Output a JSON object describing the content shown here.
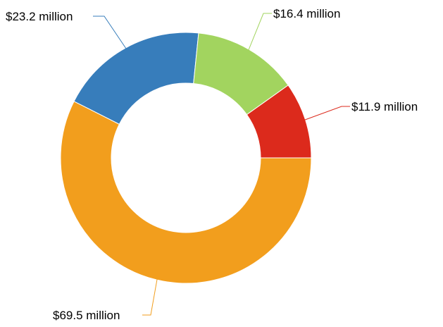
{
  "chart_data": {
    "type": "pie",
    "donut": true,
    "slices": [
      {
        "label": "$11.9 million",
        "value": 11.9,
        "color": "#dc2a1c"
      },
      {
        "label": "$69.5 million",
        "value": 69.5,
        "color": "#f29e1d"
      },
      {
        "label": "$23.2 million",
        "value": 23.2,
        "color": "#377dbb"
      },
      {
        "label": "$16.4 million",
        "value": 16.4,
        "color": "#a2d45f"
      }
    ]
  }
}
